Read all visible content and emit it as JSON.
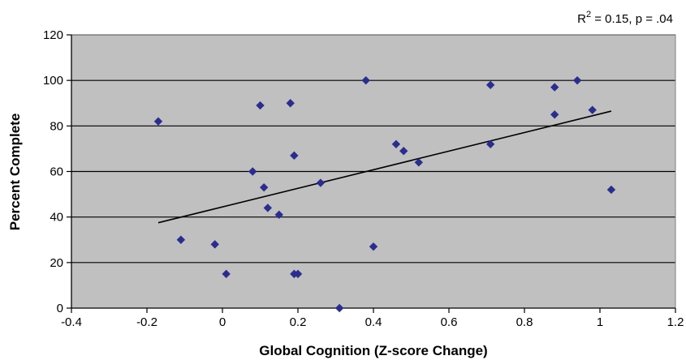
{
  "chart_data": {
    "type": "scatter",
    "title": "",
    "xlabel": "Global Cognition (Z-score Change)",
    "ylabel": "Percent Complete",
    "xlim": [
      -0.4,
      1.2
    ],
    "ylim": [
      0,
      120
    ],
    "xticks": [
      -0.4,
      -0.2,
      0,
      0.2,
      0.4,
      0.6,
      0.8,
      1,
      1.2
    ],
    "xtick_labels": [
      "-0.4",
      "-0.2",
      "0",
      "0.2",
      "0.4",
      "0.6",
      "0.8",
      "1",
      "1.2"
    ],
    "yticks": [
      0,
      20,
      40,
      60,
      80,
      100,
      120
    ],
    "ytick_labels": [
      "0",
      "20",
      "40",
      "60",
      "80",
      "100",
      "120"
    ],
    "grid": "horizontal",
    "background_color": "#c0c0c0",
    "marker_color": "#2b2d8e",
    "line_color": "#000000",
    "annotation": {
      "prefix": "R",
      "superscript": "2",
      "rest": " = 0.15, p = .04"
    },
    "points": [
      {
        "x": -0.17,
        "y": 82
      },
      {
        "x": -0.11,
        "y": 30
      },
      {
        "x": -0.02,
        "y": 28
      },
      {
        "x": 0.01,
        "y": 15
      },
      {
        "x": 0.08,
        "y": 60
      },
      {
        "x": 0.1,
        "y": 89
      },
      {
        "x": 0.11,
        "y": 53
      },
      {
        "x": 0.12,
        "y": 44
      },
      {
        "x": 0.15,
        "y": 41
      },
      {
        "x": 0.18,
        "y": 90
      },
      {
        "x": 0.19,
        "y": 67
      },
      {
        "x": 0.19,
        "y": 15
      },
      {
        "x": 0.2,
        "y": 15
      },
      {
        "x": 0.26,
        "y": 55
      },
      {
        "x": 0.31,
        "y": 0
      },
      {
        "x": 0.38,
        "y": 100
      },
      {
        "x": 0.4,
        "y": 27
      },
      {
        "x": 0.46,
        "y": 72
      },
      {
        "x": 0.48,
        "y": 69
      },
      {
        "x": 0.52,
        "y": 64
      },
      {
        "x": 0.71,
        "y": 98
      },
      {
        "x": 0.71,
        "y": 72
      },
      {
        "x": 0.88,
        "y": 97
      },
      {
        "x": 0.88,
        "y": 85
      },
      {
        "x": 0.94,
        "y": 100
      },
      {
        "x": 0.98,
        "y": 87
      },
      {
        "x": 1.03,
        "y": 52
      }
    ],
    "trendline": [
      {
        "x": -0.17,
        "y": 37.5
      },
      {
        "x": 1.03,
        "y": 86.5
      }
    ]
  }
}
